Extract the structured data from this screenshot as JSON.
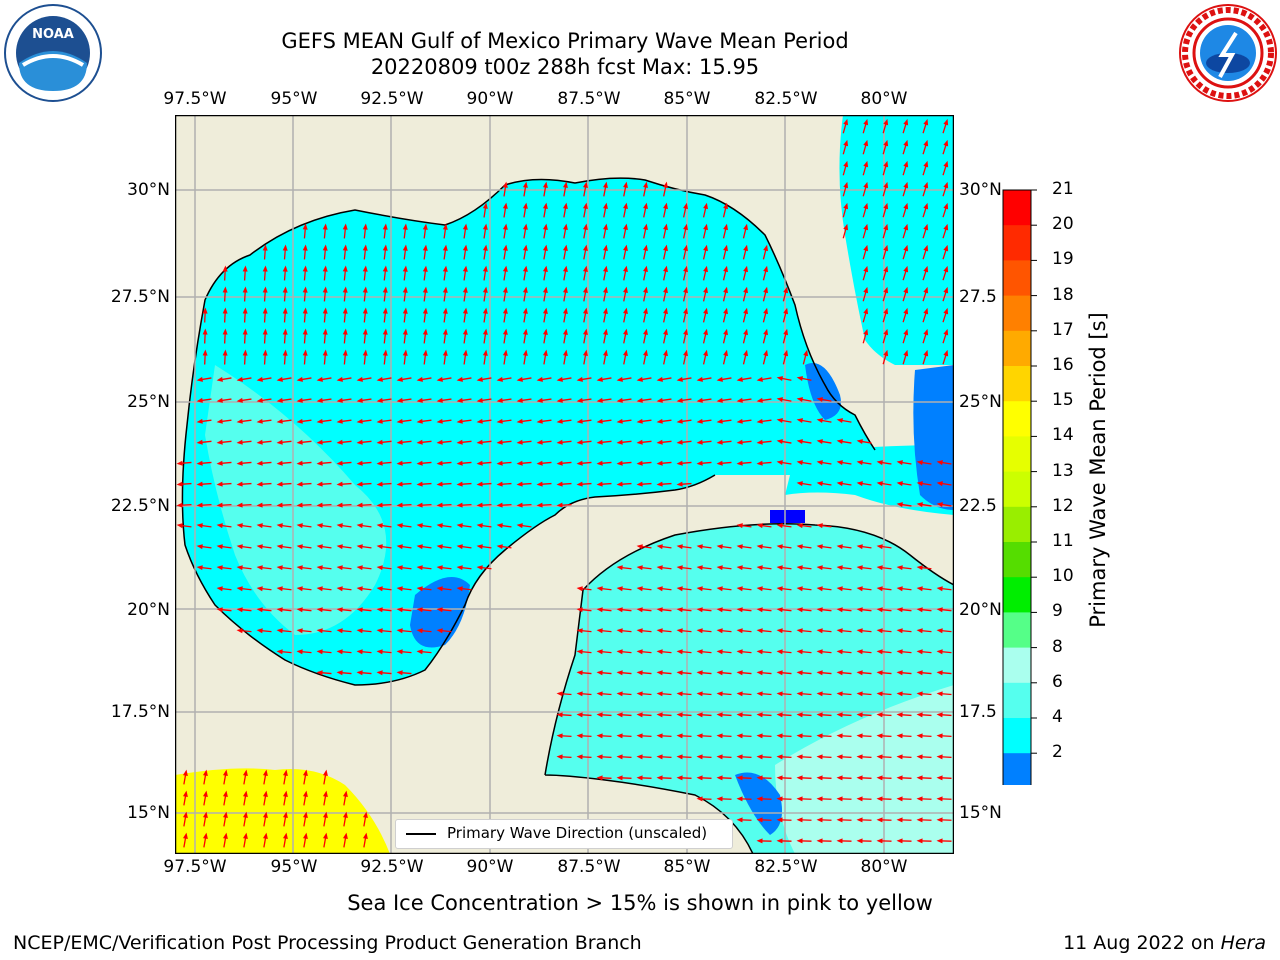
{
  "title_line1": "GEFS MEAN Gulf of Mexico Primary Wave Mean Period",
  "title_line2": "20220809 t00z 288h fcst   Max: 15.95",
  "lon_ticks": [
    "97.5°W",
    "95°W",
    "92.5°W",
    "90°W",
    "87.5°W",
    "85°W",
    "82.5°W",
    "80°W"
  ],
  "lat_ticks_left": [
    "30°N",
    "27.5°N",
    "25°N",
    "22.5°N",
    "20°N",
    "17.5°N",
    "15°N"
  ],
  "lat_ticks_right": [
    "30°N",
    "27.5",
    "25°N",
    "22.5",
    "20°N",
    "17.5",
    "15°N"
  ],
  "colorbar": {
    "label": "Primary Wave Mean Period [s]",
    "ticks": [
      "21",
      "20",
      "19",
      "18",
      "17",
      "16",
      "15",
      "14",
      "13",
      "12",
      "11",
      "10",
      "9",
      "8",
      "6",
      "4",
      "2"
    ],
    "colors": [
      "#ff0000",
      "#ff2a00",
      "#ff5500",
      "#ff8000",
      "#ffaa00",
      "#ffd500",
      "#ffff00",
      "#e6ff00",
      "#ccff00",
      "#99ee00",
      "#55dd00",
      "#00ee00",
      "#55ff88",
      "#aaffee",
      "#55ffee",
      "#00ffff",
      "#0080ff"
    ],
    "extend_color": "#0000ff"
  },
  "legend": {
    "label": "Primary Wave Direction (unscaled)"
  },
  "subtitle": "Sea Ice Concentration > 15% is shown in pink to yellow",
  "footer_left": "NCEP/EMC/Verification Post Processing Product Generation Branch",
  "footer_right_date": "11 Aug 2022 on ",
  "footer_right_host": "Hera",
  "colors": {
    "land": "#efedda",
    "ocean_main": "#00ffff",
    "ocean_light": "#55ffee",
    "ocean_pale": "#aaffee",
    "ocean_deep": "#0080ff",
    "ocean_deepest": "#0000ff",
    "ice": "#ffff00",
    "arrow": "#ff0000",
    "grid": "#b0b0b0"
  }
}
